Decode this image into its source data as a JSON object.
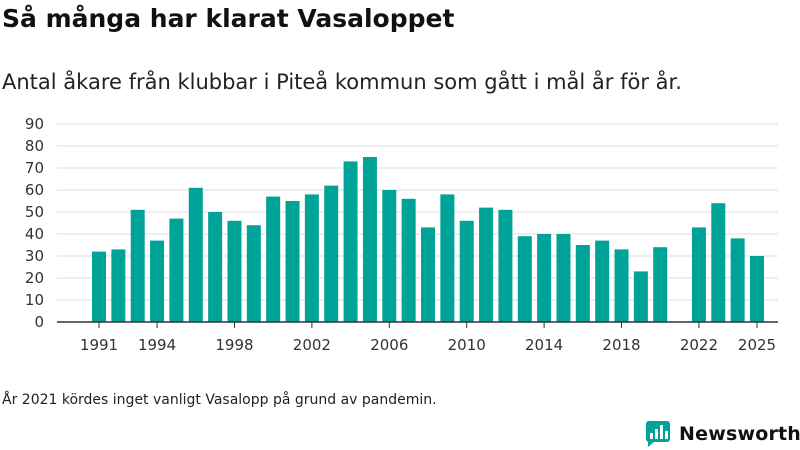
{
  "chart_data": {
    "type": "bar",
    "title": "Så många har klarat Vasaloppet",
    "subtitle": "Antal åkare från klubbar i Piteå kommun som gått i mål år för år.",
    "xlabel": "",
    "ylabel": "",
    "ylim": [
      0,
      90
    ],
    "yticks": [
      0,
      10,
      20,
      30,
      40,
      50,
      60,
      70,
      80,
      90
    ],
    "xtick_labels": [
      "1991",
      "1994",
      "1998",
      "2002",
      "2006",
      "2010",
      "2014",
      "2018",
      "2022",
      "2025"
    ],
    "grid": true,
    "categories": [
      1991,
      1992,
      1993,
      1994,
      1995,
      1996,
      1997,
      1998,
      1999,
      2000,
      2001,
      2002,
      2003,
      2004,
      2005,
      2006,
      2007,
      2008,
      2009,
      2010,
      2011,
      2012,
      2013,
      2014,
      2015,
      2016,
      2017,
      2018,
      2019,
      2020,
      2021,
      2022,
      2023,
      2024,
      2025
    ],
    "values": [
      32,
      33,
      51,
      37,
      47,
      61,
      50,
      46,
      44,
      57,
      55,
      58,
      62,
      73,
      75,
      60,
      56,
      43,
      58,
      46,
      52,
      51,
      39,
      40,
      40,
      35,
      37,
      33,
      23,
      34,
      null,
      43,
      54,
      38,
      30
    ],
    "bar_color": "#00a398"
  },
  "footnote": "År 2021 kördes inget vanligt Vasalopp på grund av pandemin.",
  "brand": {
    "name": "Newsworthy",
    "color": "#00a398",
    "icon": "bar-chart-speech-bubble-icon"
  }
}
